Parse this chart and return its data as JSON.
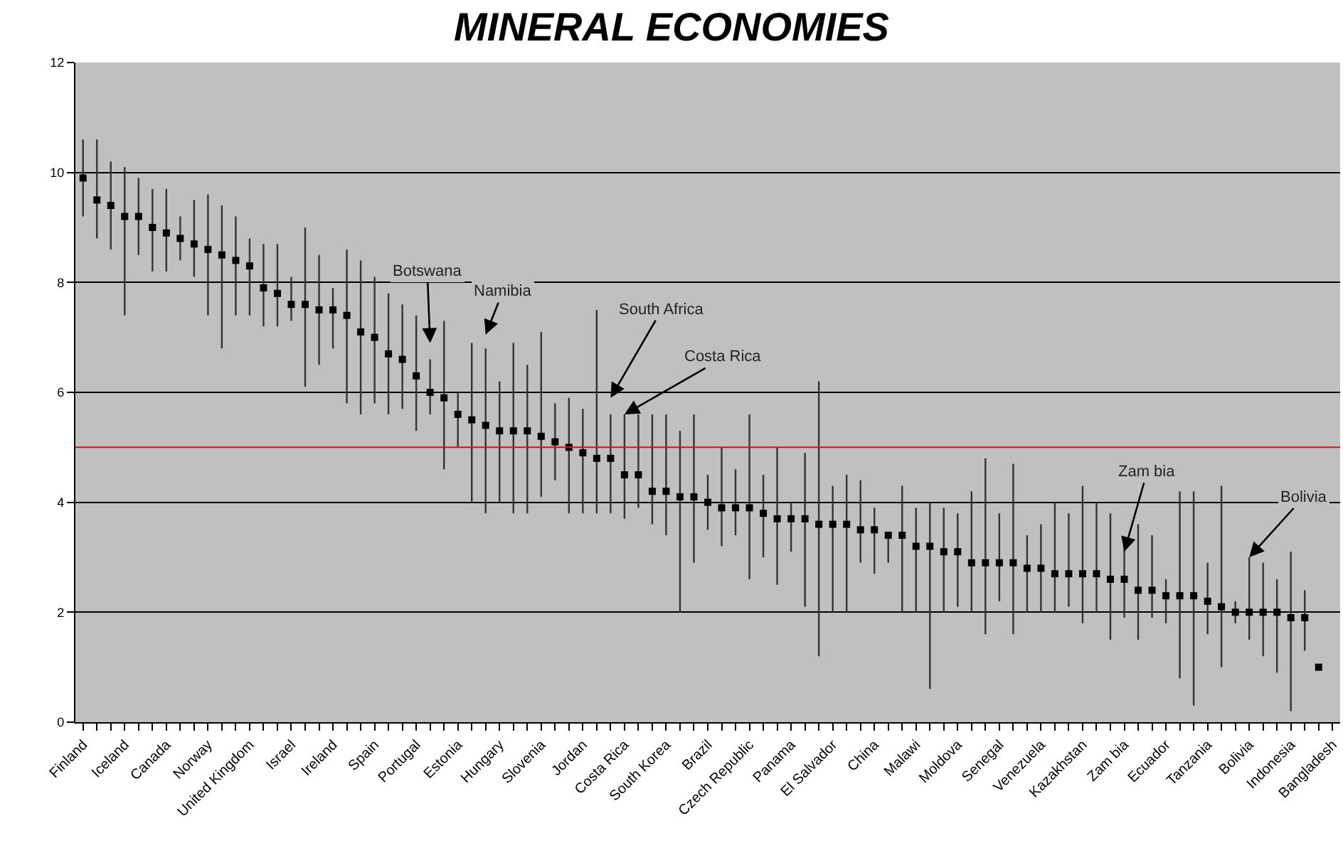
{
  "chart_data": {
    "type": "scatter",
    "title": "MINERAL ECONOMIES",
    "categories": [
      "Finland",
      null,
      null,
      "Iceland",
      null,
      null,
      "Canada",
      null,
      null,
      "Norway",
      null,
      null,
      "United Kingdom",
      null,
      null,
      "Israel",
      null,
      null,
      "Ireland",
      null,
      null,
      "Spain",
      null,
      null,
      "Portugal",
      null,
      null,
      "Estonia",
      null,
      null,
      "Hungary",
      null,
      null,
      "Slovenia",
      null,
      null,
      "Jordan",
      null,
      null,
      "Costa Rica",
      null,
      null,
      "South Korea",
      null,
      null,
      "Brazil",
      null,
      null,
      "Czech Republic",
      null,
      null,
      "Panama",
      null,
      null,
      "El Salvador",
      null,
      null,
      "China",
      null,
      null,
      "Malawi",
      null,
      null,
      "Moldova",
      null,
      null,
      "Senegal",
      null,
      null,
      "Venezuela",
      null,
      null,
      "Kazakhstan",
      null,
      null,
      "Zam bia",
      null,
      null,
      "Ecuador",
      null,
      null,
      "Tanzania",
      null,
      null,
      "Bolivia",
      null,
      null,
      "Indonesia",
      null,
      null,
      "Bangladesh"
    ],
    "series": [
      {
        "color": "#000000",
        "values": [
          9.9,
          9.5,
          9.4,
          9.2,
          9.2,
          9.0,
          8.9,
          8.8,
          8.7,
          8.6,
          8.5,
          8.4,
          8.3,
          7.9,
          7.8,
          7.6,
          7.6,
          7.5,
          7.5,
          7.4,
          7.1,
          7.0,
          6.7,
          6.6,
          6.3,
          6.0,
          5.9,
          5.6,
          5.5,
          5.4,
          5.3,
          5.3,
          5.3,
          5.2,
          5.1,
          5.0,
          4.9,
          4.8,
          4.8,
          4.5,
          4.5,
          4.2,
          4.2,
          4.1,
          4.1,
          4.0,
          3.9,
          3.9,
          3.9,
          3.8,
          3.7,
          3.7,
          3.7,
          3.6,
          3.6,
          3.6,
          3.5,
          3.5,
          3.4,
          3.4,
          3.2,
          3.2,
          3.1,
          3.1,
          2.9,
          2.9,
          2.9,
          2.9,
          2.8,
          2.8,
          2.7,
          2.7,
          2.7,
          2.7,
          2.6,
          2.6,
          2.4,
          2.4,
          2.3,
          2.3,
          2.3,
          2.2,
          2.1,
          2.0,
          2.0,
          2.0,
          2.0,
          1.9,
          1.9,
          1.0,
          null
        ],
        "errors": [
          [
            9.2,
            10.6
          ],
          [
            8.8,
            10.6
          ],
          [
            8.6,
            10.2
          ],
          [
            7.4,
            10.1
          ],
          [
            8.5,
            9.9
          ],
          [
            8.2,
            9.7
          ],
          [
            8.2,
            9.7
          ],
          [
            8.4,
            9.2
          ],
          [
            8.1,
            9.5
          ],
          [
            7.4,
            9.6
          ],
          [
            6.8,
            9.4
          ],
          [
            7.4,
            9.2
          ],
          [
            7.4,
            8.8
          ],
          [
            7.2,
            8.7
          ],
          [
            7.2,
            8.7
          ],
          [
            7.3,
            8.1
          ],
          [
            6.1,
            9.0
          ],
          [
            6.5,
            8.5
          ],
          [
            6.8,
            7.9
          ],
          [
            5.8,
            8.6
          ],
          [
            5.6,
            8.4
          ],
          [
            5.8,
            8.1
          ],
          [
            5.6,
            7.8
          ],
          [
            5.7,
            7.6
          ],
          [
            5.3,
            7.4
          ],
          [
            5.6,
            6.6
          ],
          [
            4.6,
            7.3
          ],
          [
            5.0,
            6.0
          ],
          [
            4.0,
            6.9
          ],
          [
            3.8,
            6.8
          ],
          [
            4.0,
            6.2
          ],
          [
            3.8,
            6.9
          ],
          [
            3.8,
            6.5
          ],
          [
            4.1,
            7.1
          ],
          [
            4.4,
            5.8
          ],
          [
            3.8,
            5.9
          ],
          [
            3.8,
            5.7
          ],
          [
            3.8,
            7.5
          ],
          [
            3.8,
            5.6
          ],
          [
            3.7,
            5.6
          ],
          [
            3.9,
            5.6
          ],
          [
            3.6,
            5.6
          ],
          [
            3.4,
            5.6
          ],
          [
            2.0,
            5.3
          ],
          [
            2.9,
            5.6
          ],
          [
            3.5,
            4.5
          ],
          [
            3.2,
            5.0
          ],
          [
            3.4,
            4.6
          ],
          [
            2.6,
            5.6
          ],
          [
            3.0,
            4.5
          ],
          [
            2.5,
            5.0
          ],
          [
            3.1,
            4.0
          ],
          [
            2.1,
            4.9
          ],
          [
            1.2,
            6.2
          ],
          [
            2.0,
            4.3
          ],
          [
            2.0,
            4.5
          ],
          [
            2.9,
            4.4
          ],
          [
            2.7,
            3.9
          ],
          [
            2.9,
            3.4
          ],
          [
            2.0,
            4.3
          ],
          [
            2.0,
            3.9
          ],
          [
            0.6,
            4.0
          ],
          [
            2.0,
            3.9
          ],
          [
            2.1,
            3.8
          ],
          [
            2.0,
            4.2
          ],
          [
            1.6,
            4.8
          ],
          [
            2.2,
            3.8
          ],
          [
            1.6,
            4.7
          ],
          [
            2.0,
            3.4
          ],
          [
            2.0,
            3.6
          ],
          [
            2.0,
            4.0
          ],
          [
            2.1,
            3.8
          ],
          [
            1.8,
            4.3
          ],
          [
            2.0,
            4.0
          ],
          [
            1.5,
            3.8
          ],
          [
            1.9,
            3.2
          ],
          [
            1.5,
            3.6
          ],
          [
            1.9,
            3.4
          ],
          [
            1.8,
            2.6
          ],
          [
            0.8,
            4.2
          ],
          [
            0.3,
            4.2
          ],
          [
            1.6,
            2.9
          ],
          [
            1.0,
            4.3
          ],
          [
            1.8,
            2.2
          ],
          [
            1.5,
            3.0
          ],
          [
            1.2,
            2.9
          ],
          [
            0.9,
            2.6
          ],
          [
            0.2,
            3.1
          ],
          [
            1.3,
            2.4
          ],
          null,
          null
        ]
      }
    ],
    "ylim": [
      0,
      12
    ],
    "yticks": [
      0,
      2,
      4,
      6,
      8,
      10,
      12
    ],
    "grid": "y",
    "marker": "square",
    "ref_lines": [
      {
        "axis": "y",
        "value": 5,
        "color": "#ff0000"
      }
    ],
    "annotations": [
      "Botswana",
      "Namibia",
      "South Africa",
      {
        "text": "Costa Rica",
        "x": "Costa Rica",
        "y": 5.6
      },
      {
        "text": "Zam bia",
        "x": "Zam bia",
        "y": 3.1
      },
      {
        "text": "Bolivia",
        "x": "Bolivia",
        "y": 3.0
      }
    ]
  }
}
